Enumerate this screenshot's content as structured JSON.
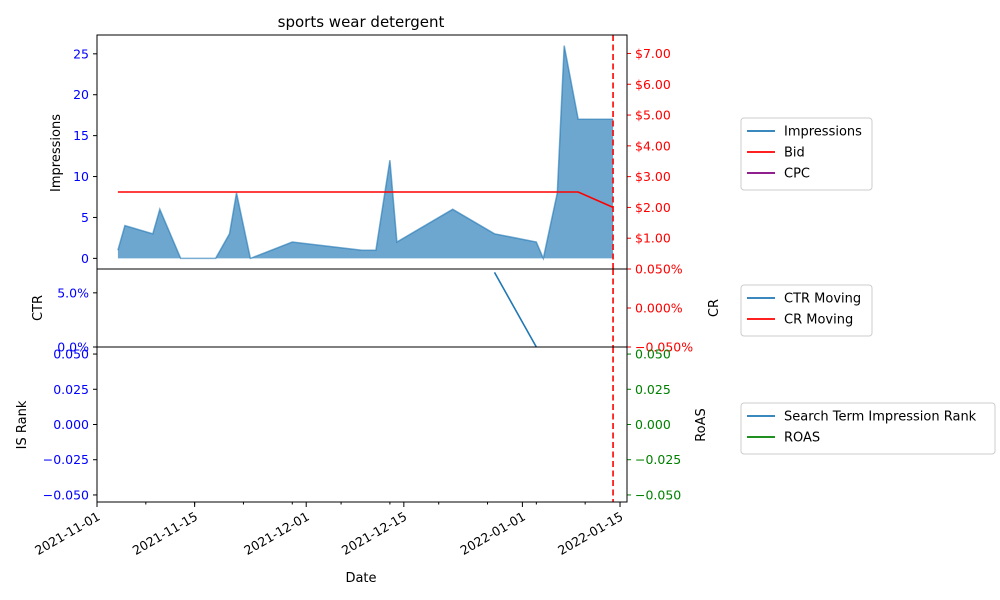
{
  "title": "sports wear detergent",
  "colors": {
    "impressions": "#1f77b4",
    "bid": "#ff0000",
    "cpc": "#800080",
    "ctr": "#1f77b4",
    "cr": "#ff0000",
    "is_rank": "#1f77b4",
    "roas": "#008000",
    "left_tick": "#0000ff",
    "cr_tick": "#ff0000",
    "roas_tick": "#008000",
    "marker": "#ff0000"
  },
  "chart_data": [
    {
      "type": "area",
      "title": "sports wear detergent",
      "ylabel": "Impressions",
      "y2label": "",
      "ylim": [
        -1.3,
        27.3
      ],
      "y2lim": [
        0,
        7.6
      ],
      "yticks": [
        0,
        5,
        10,
        15,
        20,
        25
      ],
      "y2ticks": [
        "$1.00",
        "$2.00",
        "$3.00",
        "$4.00",
        "$5.00",
        "$6.00",
        "$7.00"
      ],
      "y2tick_values": [
        1,
        2,
        3,
        4,
        5,
        6,
        7
      ],
      "series": [
        {
          "name": "Impressions",
          "type": "area",
          "points": [
            [
              "2021-11-04",
              1
            ],
            [
              "2021-11-05",
              4
            ],
            [
              "2021-11-09",
              3
            ],
            [
              "2021-11-10",
              6
            ],
            [
              "2021-11-13",
              0
            ],
            [
              "2021-11-18",
              0
            ],
            [
              "2021-11-20",
              3
            ],
            [
              "2021-11-21",
              8
            ],
            [
              "2021-11-23",
              0
            ],
            [
              "2021-11-29",
              2
            ],
            [
              "2021-12-09",
              1
            ],
            [
              "2021-12-11",
              1
            ],
            [
              "2021-12-13",
              12
            ],
            [
              "2021-12-14",
              2
            ],
            [
              "2021-12-22",
              6
            ],
            [
              "2021-12-28",
              3
            ],
            [
              "2022-01-03",
              2
            ],
            [
              "2022-01-04",
              0
            ],
            [
              "2022-01-06",
              8
            ],
            [
              "2022-01-07",
              26
            ],
            [
              "2022-01-09",
              17
            ],
            [
              "2022-01-14",
              17
            ]
          ]
        },
        {
          "name": "Bid",
          "type": "line",
          "points": [
            [
              "2021-11-04",
              2.5
            ],
            [
              "2022-01-09",
              2.5
            ],
            [
              "2022-01-14",
              2.0
            ]
          ]
        },
        {
          "name": "CPC",
          "type": "line",
          "points": []
        }
      ]
    },
    {
      "type": "line",
      "ylabel": "CTR",
      "y2label": "CR",
      "ylim": [
        0,
        0.072
      ],
      "y2lim": [
        -0.05,
        0.05
      ],
      "yticks": [
        "0.0%",
        "5.0%"
      ],
      "ytick_values": [
        0,
        0.05
      ],
      "y2ticks": [
        "−0.050%",
        "0.000%",
        "0.050%"
      ],
      "y2tick_values": [
        -0.05,
        0,
        0.05
      ],
      "series": [
        {
          "name": "CTR Moving",
          "points": [
            [
              "2021-12-28",
              0.0689
            ],
            [
              "2022-01-03",
              0.0
            ]
          ]
        },
        {
          "name": "CR Moving",
          "points": []
        }
      ]
    },
    {
      "type": "line",
      "ylabel": "IS Rank",
      "y2label": "RoAS",
      "xlabel": "Date",
      "ylim": [
        -0.055,
        0.055
      ],
      "y2lim": [
        -0.055,
        0.055
      ],
      "yticks": [
        "−0.050",
        "−0.025",
        "0.000",
        "0.025",
        "0.050"
      ],
      "ytick_values": [
        -0.05,
        -0.025,
        0,
        0.025,
        0.05
      ],
      "y2ticks": [
        "−0.050",
        "−0.025",
        "0.000",
        "0.025",
        "0.050"
      ],
      "y2tick_values": [
        -0.05,
        -0.025,
        0,
        0.025,
        0.05
      ],
      "xticks": [
        "2021-11-01",
        "2021-11-15",
        "2021-12-01",
        "2021-12-15",
        "2022-01-01",
        "2022-01-15"
      ],
      "series": [
        {
          "name": "Search Term Impression Rank",
          "points": []
        },
        {
          "name": "ROAS",
          "points": []
        }
      ]
    }
  ],
  "x_axis": {
    "xlabel": "Date",
    "xlim": [
      "2021-11-01",
      "2022-01-16"
    ],
    "xticks": [
      "2021-11-01",
      "2021-11-15",
      "2021-12-01",
      "2021-12-15",
      "2022-01-01",
      "2022-01-15"
    ],
    "marker_date": "2022-01-14"
  },
  "legends": [
    {
      "items": [
        {
          "label": "Impressions",
          "color": "#1f77b4"
        },
        {
          "label": "Bid",
          "color": "#ff0000"
        },
        {
          "label": "CPC",
          "color": "#800080"
        }
      ]
    },
    {
      "items": [
        {
          "label": "CTR Moving",
          "color": "#1f77b4"
        },
        {
          "label": "CR Moving",
          "color": "#ff0000"
        }
      ]
    },
    {
      "items": [
        {
          "label": "Search Term Impression Rank",
          "color": "#1f77b4"
        },
        {
          "label": "ROAS",
          "color": "#008000"
        }
      ]
    }
  ]
}
